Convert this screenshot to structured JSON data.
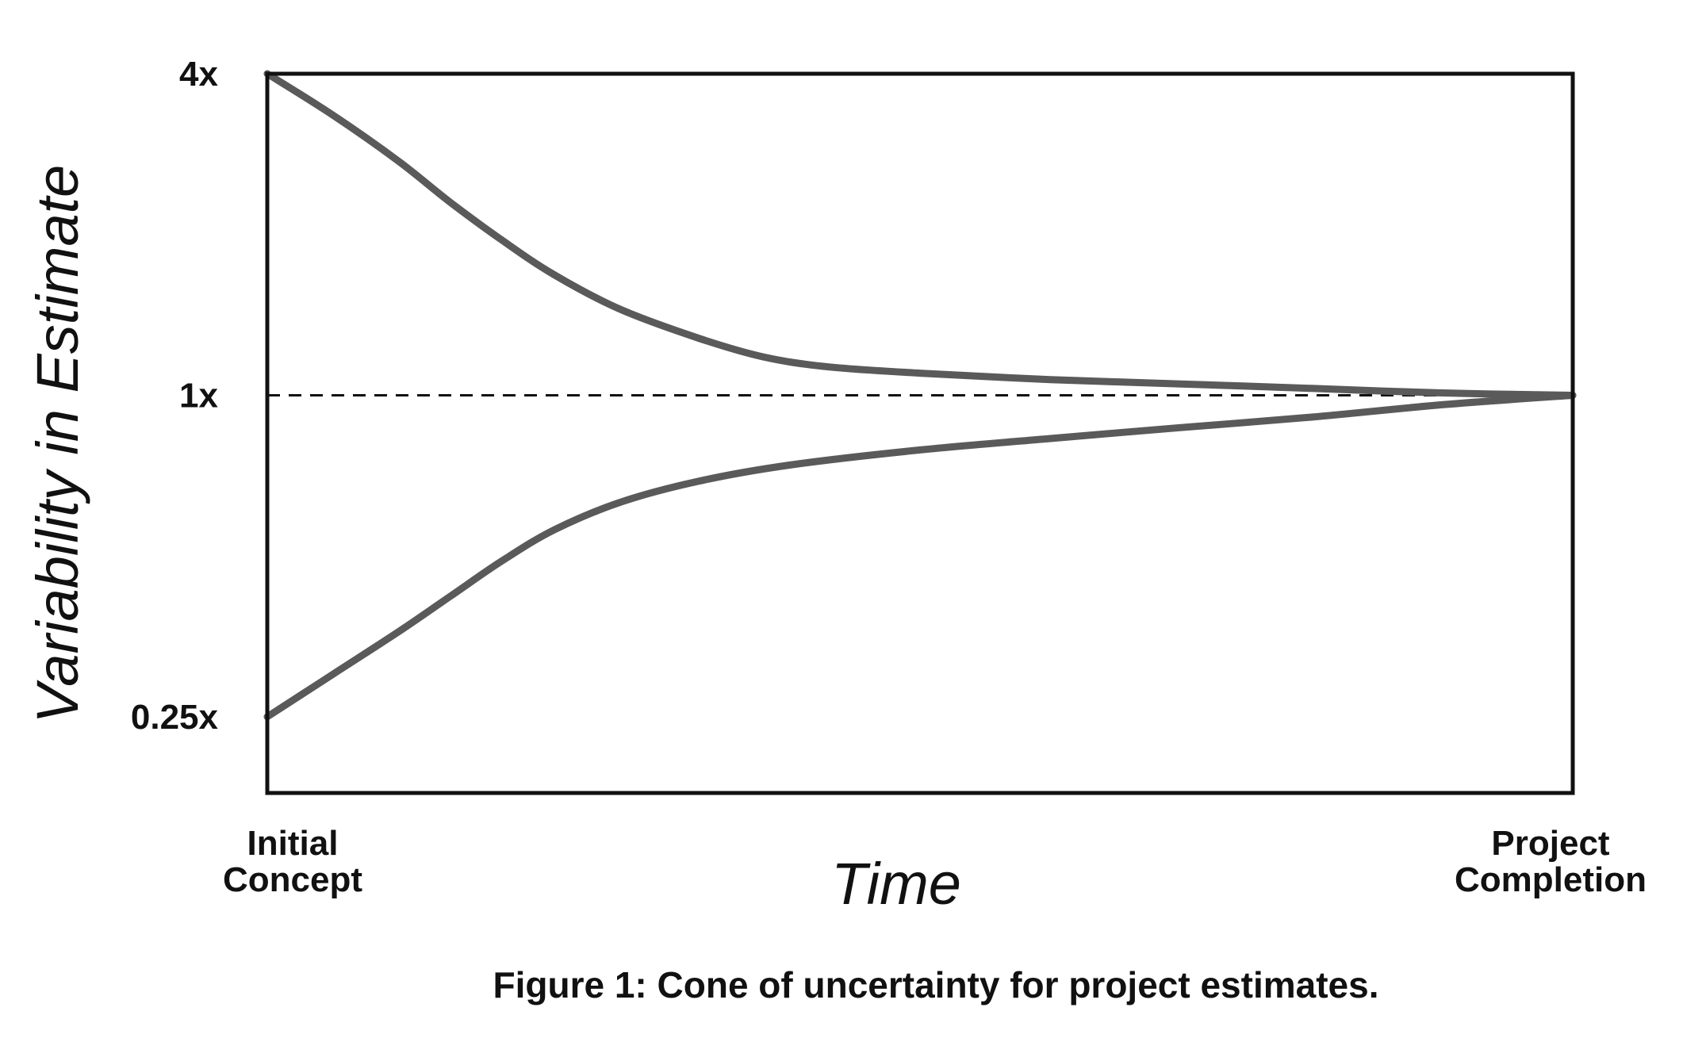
{
  "chart_data": {
    "type": "line",
    "caption": "Figure 1: Cone of uncertainty for project estimates.",
    "xlabel": "Time",
    "ylabel": "Variability in Estimate",
    "y_scale": "log",
    "ylim": [
      0.18,
      4
    ],
    "xlim": [
      0,
      1
    ],
    "grid": false,
    "legend": "none",
    "x_tick_labels": [
      {
        "value": 0,
        "lines": [
          "Initial",
          "Concept"
        ]
      },
      {
        "value": 1,
        "lines": [
          "Project",
          "Completion"
        ]
      }
    ],
    "y_tick_labels": [
      {
        "value": 4,
        "label": "4x"
      },
      {
        "value": 1,
        "label": "1x"
      },
      {
        "value": 0.25,
        "label": "0.25x"
      }
    ],
    "reference_line": {
      "y": 1,
      "style": "dashed"
    },
    "series": [
      {
        "points": [
          [
            0,
            4.0
          ],
          [
            0.05,
            3.35
          ],
          [
            0.1,
            2.75
          ],
          [
            0.14,
            2.3
          ],
          [
            0.18,
            1.95
          ],
          [
            0.22,
            1.68
          ],
          [
            0.27,
            1.45
          ],
          [
            0.33,
            1.28
          ],
          [
            0.38,
            1.18
          ],
          [
            0.43,
            1.13
          ],
          [
            0.5,
            1.1
          ],
          [
            0.6,
            1.07
          ],
          [
            0.7,
            1.05
          ],
          [
            0.8,
            1.03
          ],
          [
            0.9,
            1.01
          ],
          [
            1.0,
            1.0
          ]
        ]
      },
      {
        "points": [
          [
            0,
            0.25
          ],
          [
            0.05,
            0.3
          ],
          [
            0.1,
            0.36
          ],
          [
            0.14,
            0.42
          ],
          [
            0.18,
            0.49
          ],
          [
            0.22,
            0.56
          ],
          [
            0.27,
            0.63
          ],
          [
            0.33,
            0.69
          ],
          [
            0.4,
            0.74
          ],
          [
            0.5,
            0.79
          ],
          [
            0.6,
            0.83
          ],
          [
            0.7,
            0.87
          ],
          [
            0.8,
            0.91
          ],
          [
            0.9,
            0.96
          ],
          [
            1.0,
            1.0
          ]
        ]
      }
    ],
    "colors": {
      "curve": "#5a5a5a",
      "frame": "#111111",
      "reference": "#111111",
      "text": "#111111"
    }
  }
}
